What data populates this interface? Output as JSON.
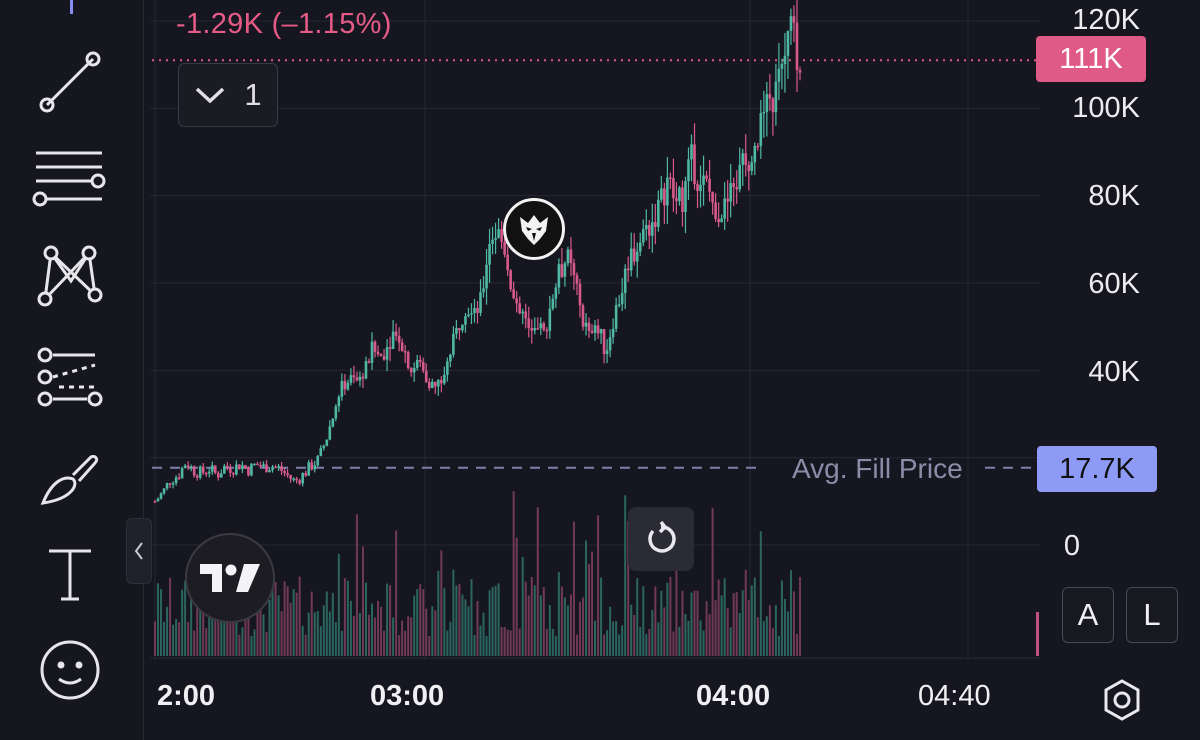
{
  "header": {
    "change_text": "-1.29K (–1.15%)",
    "interval_value": "1",
    "interval_icon": "chevron-down-icon"
  },
  "price_tags": {
    "last_price": "111K",
    "avg_fill_label": "Avg. Fill Price",
    "avg_fill_value": "17.7K"
  },
  "axis_buttons": {
    "auto": "A",
    "log": "L"
  },
  "toolbar": {
    "items": [
      {
        "name": "trend-line-icon"
      },
      {
        "name": "horizontal-lines-icon"
      },
      {
        "name": "pattern-icon"
      },
      {
        "name": "forecast-icon"
      },
      {
        "name": "brush-icon"
      },
      {
        "name": "text-icon",
        "label": "T"
      },
      {
        "name": "emoji-icon"
      }
    ]
  },
  "colors": {
    "up": "#4fb8a4",
    "down": "#d85a8a",
    "last_price": "#e05a88",
    "avg_fill": "#8d9bf7",
    "background": "#161620"
  },
  "chart_data": {
    "type": "candlestick",
    "y_ticks": [
      "120K",
      "100K",
      "80K",
      "60K",
      "40K",
      "0"
    ],
    "x_ticks": [
      "2:00",
      "03:00",
      "04:00",
      "04:40"
    ],
    "ylim": [
      0,
      120000
    ],
    "last_price": 111000,
    "avg_fill_price": 17700,
    "price_path": [
      [
        0,
        10000
      ],
      [
        2,
        12000
      ],
      [
        4,
        15000
      ],
      [
        6,
        16000
      ],
      [
        8,
        19000
      ],
      [
        10,
        17000
      ],
      [
        12,
        16500
      ],
      [
        14,
        17500
      ],
      [
        16,
        16000
      ],
      [
        18,
        18000
      ],
      [
        20,
        17500
      ],
      [
        22,
        18500
      ],
      [
        24,
        17200
      ],
      [
        26,
        18500
      ],
      [
        28,
        17800
      ],
      [
        30,
        18200
      ],
      [
        32,
        17500
      ],
      [
        34,
        16000
      ],
      [
        36,
        14500
      ],
      [
        38,
        16000
      ],
      [
        40,
        18000
      ],
      [
        42,
        19500
      ],
      [
        44,
        24000
      ],
      [
        46,
        30000
      ],
      [
        48,
        36000
      ],
      [
        50,
        38000
      ],
      [
        52,
        37500
      ],
      [
        54,
        40000
      ],
      [
        56,
        45000
      ],
      [
        58,
        43000
      ],
      [
        60,
        46000
      ],
      [
        62,
        50000
      ],
      [
        64,
        45000
      ],
      [
        66,
        40000
      ],
      [
        68,
        42000
      ],
      [
        70,
        38000
      ],
      [
        72,
        36000
      ],
      [
        74,
        38000
      ],
      [
        76,
        44000
      ],
      [
        78,
        50000
      ],
      [
        80,
        55000
      ],
      [
        82,
        52000
      ],
      [
        84,
        56000
      ],
      [
        86,
        70000
      ],
      [
        88,
        72000
      ],
      [
        90,
        68000
      ],
      [
        92,
        58000
      ],
      [
        94,
        54000
      ],
      [
        96,
        50000
      ],
      [
        98,
        52000
      ],
      [
        100,
        48000
      ],
      [
        102,
        56000
      ],
      [
        104,
        62000
      ],
      [
        106,
        66000
      ],
      [
        108,
        60000
      ],
      [
        110,
        52000
      ],
      [
        112,
        47000
      ],
      [
        114,
        50000
      ],
      [
        116,
        44000
      ],
      [
        118,
        52000
      ],
      [
        120,
        58000
      ],
      [
        122,
        66000
      ],
      [
        124,
        68000
      ],
      [
        126,
        72000
      ],
      [
        128,
        74000
      ],
      [
        130,
        78000
      ],
      [
        132,
        84000
      ],
      [
        134,
        78000
      ],
      [
        136,
        80000
      ],
      [
        138,
        88000
      ],
      [
        140,
        84000
      ],
      [
        142,
        82000
      ],
      [
        144,
        78000
      ],
      [
        146,
        76000
      ],
      [
        148,
        80000
      ],
      [
        150,
        84000
      ],
      [
        152,
        88000
      ],
      [
        154,
        92000
      ],
      [
        156,
        96000
      ],
      [
        158,
        100000
      ],
      [
        160,
        104000
      ],
      [
        162,
        112000
      ],
      [
        164,
        118000
      ],
      [
        166,
        111000
      ]
    ]
  }
}
